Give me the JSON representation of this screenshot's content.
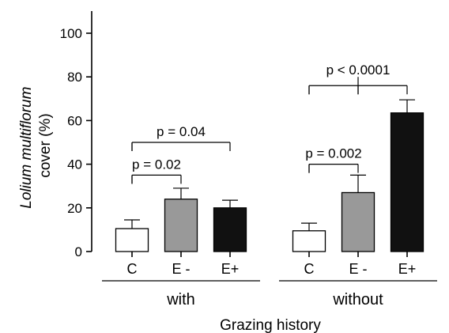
{
  "chart_data": {
    "type": "bar",
    "ylabel_line1": "Lolium multiflorum",
    "ylabel_line2": "cover (%)",
    "xlabel": "Grazing history",
    "ylim": [
      0,
      110
    ],
    "yticks": [
      0,
      20,
      40,
      60,
      80,
      100
    ],
    "grid": false,
    "groups": [
      {
        "name": "with",
        "bars": [
          {
            "category": "C",
            "value": 10.5,
            "error": 4.0,
            "color": "#ffffff"
          },
          {
            "category": "E -",
            "value": 24.0,
            "error": 5.0,
            "color": "#999999"
          },
          {
            "category": "E+",
            "value": 20.0,
            "error": 3.5,
            "color": "#111111"
          }
        ],
        "comparisons": [
          {
            "label": "p = 0.02",
            "from": 0,
            "to": [
              1
            ],
            "level": 35
          },
          {
            "label": "p = 0.04",
            "from": 0,
            "to": [
              2
            ],
            "level": 50
          }
        ]
      },
      {
        "name": "without",
        "bars": [
          {
            "category": "C",
            "value": 9.5,
            "error": 3.5,
            "color": "#ffffff"
          },
          {
            "category": "E -",
            "value": 27.0,
            "error": 8.0,
            "color": "#999999"
          },
          {
            "category": "E+",
            "value": 63.5,
            "error": 6.0,
            "color": "#111111"
          }
        ],
        "comparisons": [
          {
            "label": "p = 0.002",
            "from": 0,
            "to": [
              1
            ],
            "level": 40
          },
          {
            "label": "p < 0.0001",
            "from": 0,
            "to": [
              1,
              2
            ],
            "level": 76
          }
        ]
      }
    ]
  }
}
